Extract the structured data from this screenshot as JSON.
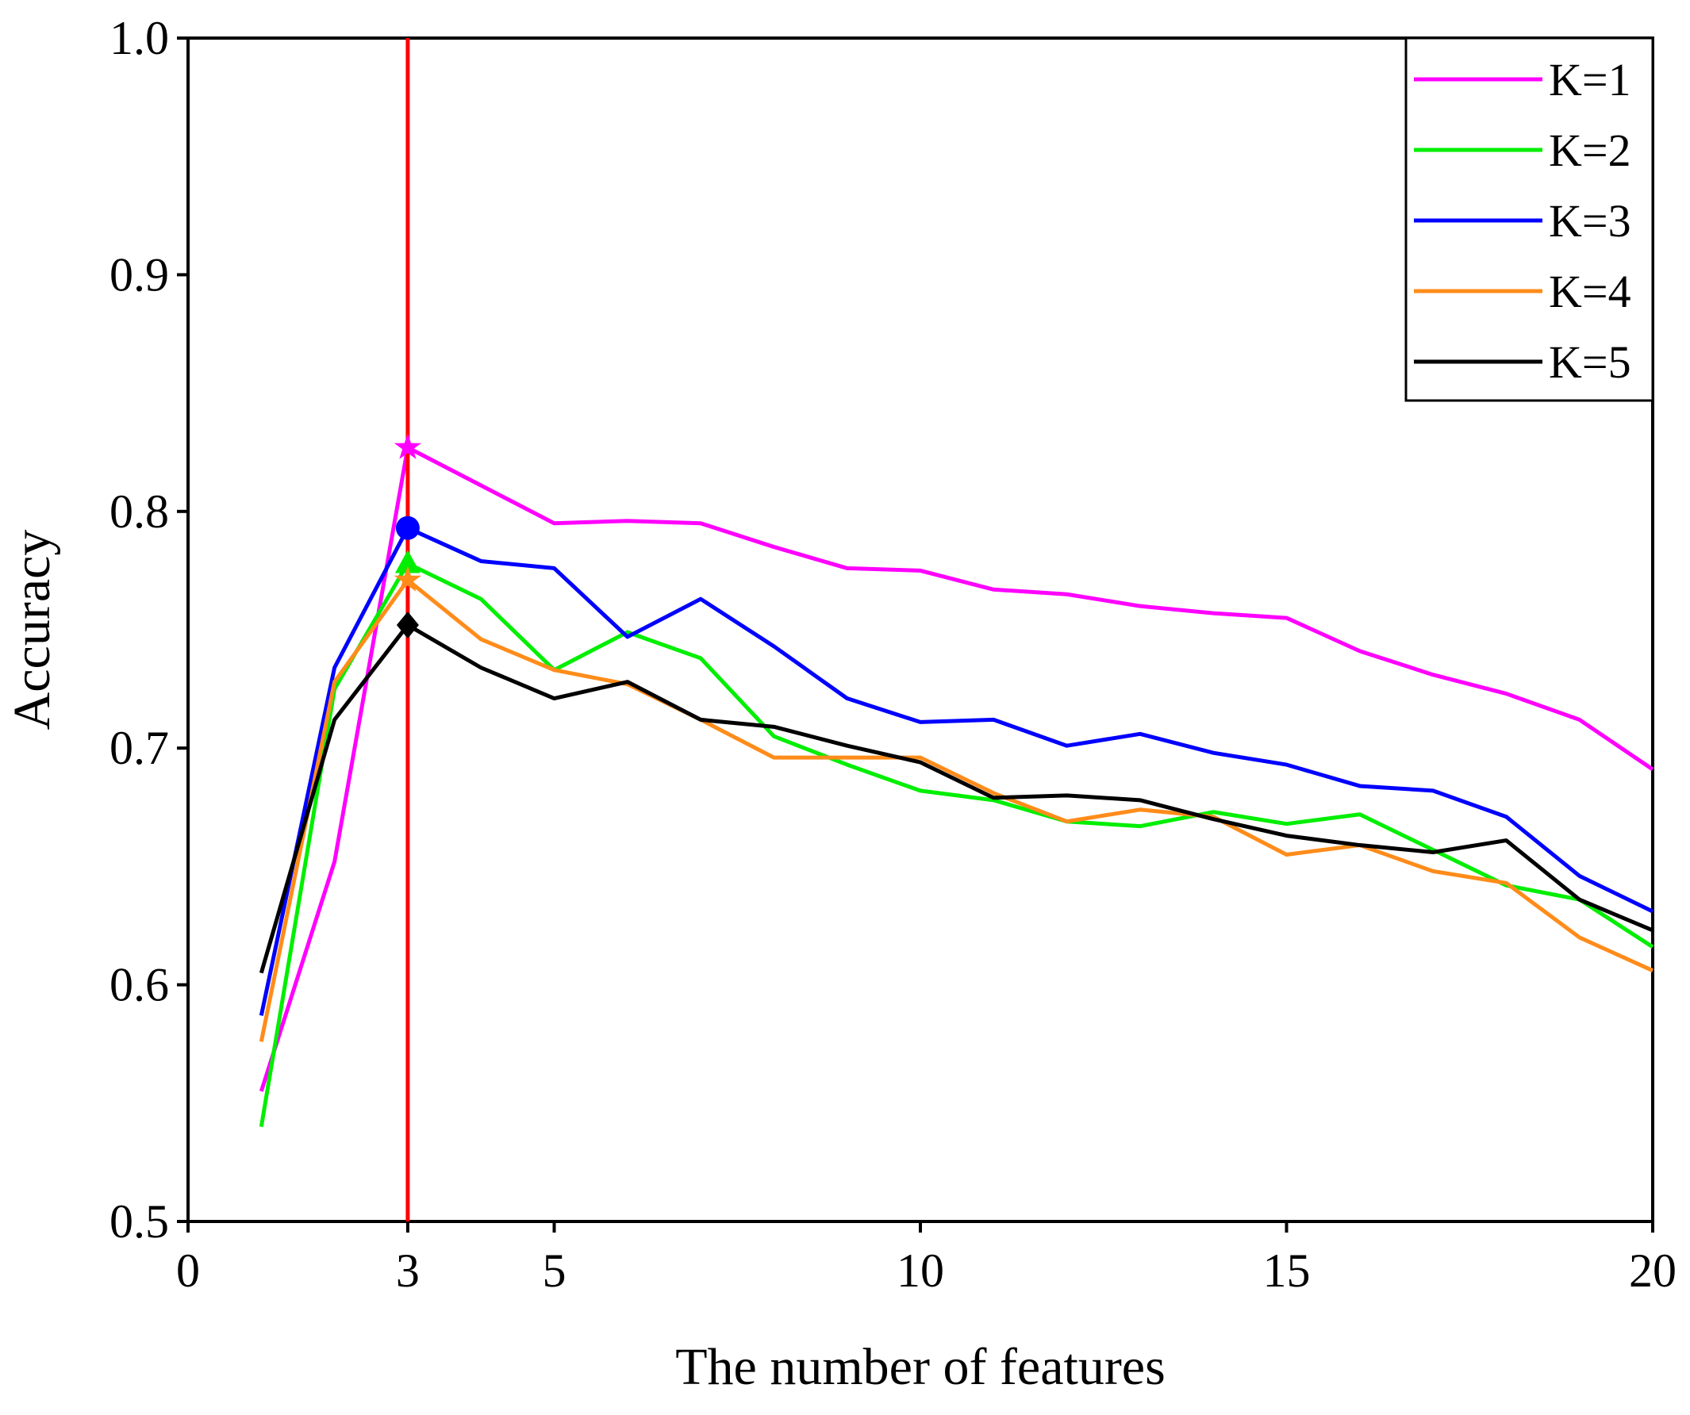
{
  "chart_data": {
    "type": "line",
    "xlabel": "The number of features",
    "ylabel": "Accuracy",
    "xlim": [
      0,
      20
    ],
    "ylim": [
      0.5,
      1.0
    ],
    "xticks": [
      0,
      3,
      5,
      10,
      15,
      20
    ],
    "xtick_labels": [
      "0",
      "3",
      "5",
      "10",
      "15",
      "20"
    ],
    "highlight_tick": 3,
    "yticks": [
      0.5,
      0.6,
      0.7,
      0.8,
      0.9,
      1.0
    ],
    "ytick_labels": [
      "0.5",
      "0.6",
      "0.7",
      "0.8",
      "0.9",
      "1.0"
    ],
    "grid": false,
    "legend_position": "top-right",
    "vertical_line": {
      "x": 3,
      "color": "#ff0000"
    },
    "x": [
      1,
      2,
      3,
      4,
      5,
      6,
      7,
      8,
      9,
      10,
      11,
      12,
      13,
      14,
      15,
      16,
      17,
      18,
      19,
      20
    ],
    "series": [
      {
        "name": "K=1",
        "color": "#ff00ff",
        "marker": "star",
        "values": [
          0.555,
          0.652,
          0.827,
          0.811,
          0.795,
          0.796,
          0.795,
          0.785,
          0.776,
          0.775,
          0.767,
          0.765,
          0.76,
          0.757,
          0.755,
          0.741,
          0.731,
          0.723,
          0.712,
          0.691
        ]
      },
      {
        "name": "K=2",
        "color": "#00ee00",
        "marker": "triangle",
        "values": [
          0.54,
          0.725,
          0.778,
          0.763,
          0.733,
          0.749,
          0.738,
          0.705,
          0.693,
          0.682,
          0.678,
          0.669,
          0.667,
          0.673,
          0.668,
          0.672,
          0.657,
          0.642,
          0.636,
          0.616
        ]
      },
      {
        "name": "K=3",
        "color": "#0000ff",
        "marker": "circle",
        "values": [
          0.587,
          0.734,
          0.793,
          0.779,
          0.776,
          0.747,
          0.763,
          0.743,
          0.721,
          0.711,
          0.712,
          0.701,
          0.706,
          0.698,
          0.693,
          0.684,
          0.682,
          0.671,
          0.646,
          0.631
        ]
      },
      {
        "name": "K=4",
        "color": "#ff8c1a",
        "marker": "star",
        "values": [
          0.576,
          0.728,
          0.771,
          0.746,
          0.733,
          0.727,
          0.712,
          0.696,
          0.696,
          0.696,
          0.681,
          0.669,
          0.674,
          0.671,
          0.655,
          0.659,
          0.648,
          0.643,
          0.62,
          0.606
        ]
      },
      {
        "name": "K=5",
        "color": "#000000",
        "marker": "diamond",
        "values": [
          0.605,
          0.712,
          0.752,
          0.734,
          0.721,
          0.728,
          0.712,
          0.709,
          0.701,
          0.694,
          0.679,
          0.68,
          0.678,
          0.67,
          0.663,
          0.659,
          0.656,
          0.661,
          0.636,
          0.623
        ]
      }
    ]
  }
}
